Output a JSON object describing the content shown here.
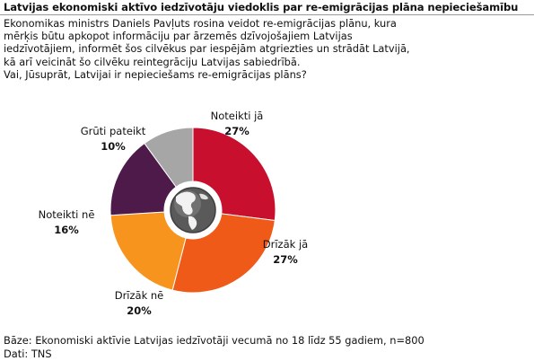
{
  "title": "Latvijas ekonomiski aktīvo iedzīvotāju viedoklis par re-emigrācijas plāna nepieciešamību",
  "description_lines": [
    "Ekonomikas ministrs Daniels Pavļuts rosina veidot re-emigrācijas plānu, kura",
    "mērķis būtu apkopot informāciju par ārzemēs dzīvojošajiem Latvijas",
    "iedzīvotājiem, informēt šos cilvēkus par iespējām atgriezties un strādāt Latvijā,",
    "kā arī veicināt šo cilvēku reintegrāciju Latvijas sabiedrībā.",
    "Vai, Jūsuprāt, Latvijai ir nepieciešams re-emigrācijas plāns?"
  ],
  "chart_data": {
    "type": "pie",
    "donut": true,
    "center_icon": "globe-icon",
    "slices": [
      {
        "label": "Noteikti jā",
        "value": 27,
        "display": "27%",
        "color": "#c8102e"
      },
      {
        "label": "Drīzāk jā",
        "value": 27,
        "display": "27%",
        "color": "#f05a19"
      },
      {
        "label": "Drīzāk nē",
        "value": 20,
        "display": "20%",
        "color": "#f7941d"
      },
      {
        "label": "Noteikti nē",
        "value": 16,
        "display": "16%",
        "color": "#4d1a4a"
      },
      {
        "label": "Grūti pateikt",
        "value": 10,
        "display": "10%",
        "color": "#a6a6a6"
      }
    ]
  },
  "footer": {
    "base": "Bāze: Ekonomiski aktīvie Latvijas iedzīvotāji vecumā no 18 līdz 55 gadiem, n=800",
    "source": "Dati: TNS"
  }
}
